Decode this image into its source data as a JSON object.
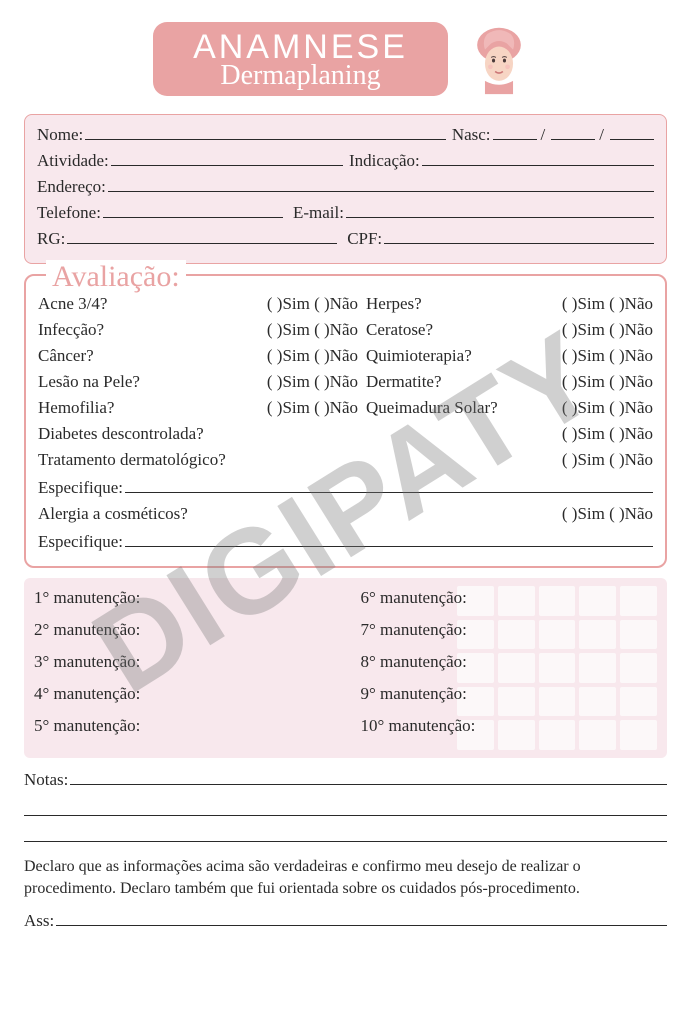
{
  "colors": {
    "accent": "#e9a3a3",
    "panel": "#f8e8ed",
    "text": "#2a2a2a",
    "white": "#ffffff",
    "watermark": "rgba(120,120,120,0.35)"
  },
  "header": {
    "title": "ANAMNESE",
    "subtitle": "Dermaplaning"
  },
  "personal": {
    "nome": "Nome:",
    "nasc": "Nasc:",
    "atividade": "Atividade:",
    "indicacao": "Indicação:",
    "endereco": "Endereço:",
    "telefone": "Telefone:",
    "email": "E-mail:",
    "rg": "RG:",
    "cpf": "CPF:"
  },
  "evaluation": {
    "title": "Avaliação:",
    "yes": "Sim",
    "no": "Não",
    "open": "(   )",
    "rows_two_col": [
      {
        "left": "Acne 3/4?",
        "right": "Herpes?"
      },
      {
        "left": "Infecção?",
        "right": "Ceratose?"
      },
      {
        "left": "Câncer?",
        "right": "Quimioterapia?"
      },
      {
        "left": "Lesão na Pele?",
        "right": "Dermatite?"
      },
      {
        "left": "Hemofilia?",
        "right": "Queimadura Solar?"
      }
    ],
    "rows_full": [
      "Diabetes descontrolada?",
      "Tratamento dermatológico?"
    ],
    "specify": "Especifique:",
    "allergy": "Alergia a cosméticos?"
  },
  "maintenance": {
    "left": [
      "1° manutenção:",
      "2° manutenção:",
      "3° manutenção:",
      "4° manutenção:",
      "5° manutenção:"
    ],
    "right": [
      "6° manutenção:",
      "7° manutenção:",
      "8° manutenção:",
      "9° manutenção:",
      "10° manutenção:"
    ],
    "grid_cells": 25
  },
  "notes": {
    "label": "Notas:"
  },
  "declaration": {
    "text": "Declaro que as informações acima são verdadeiras e confirmo meu desejo de realizar o procedimento. Declaro também que fui orientada sobre os cuidados pós-procedimento."
  },
  "signature": {
    "label": "Ass:"
  },
  "watermark": "DIGIPATY"
}
